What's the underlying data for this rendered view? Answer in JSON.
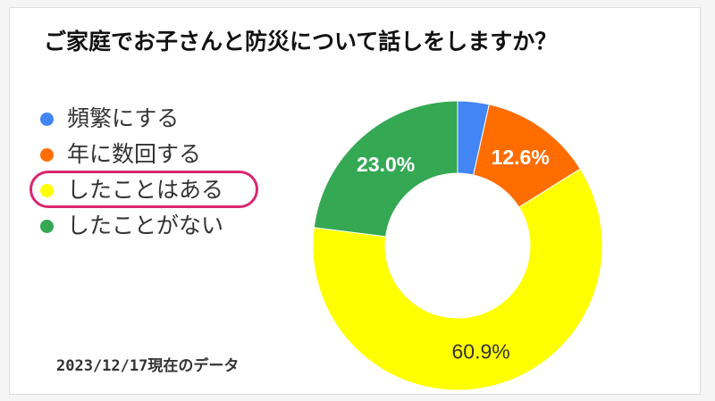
{
  "title": "ご家庭でお子さんと防災について話しをしますか？",
  "footnote": "2023/12/17現在のデータ",
  "chart_data": {
    "type": "pie",
    "title": "ご家庭でお子さんと防災について話しをしますか？",
    "categories": [
      "頻繁にする",
      "年に数回する",
      "したことはある",
      "したことがない"
    ],
    "values": [
      3.5,
      12.6,
      60.9,
      23.0
    ],
    "colors": [
      "#4285f4",
      "#ff6d01",
      "#ffff00",
      "#34a853"
    ],
    "data_labels": [
      "",
      "12.6%",
      "60.9%",
      "23.0%"
    ],
    "label_colors": [
      "#ffffff",
      "#ffffff",
      "#333333",
      "#ffffff"
    ],
    "legend_position": "left",
    "highlighted_category": "したことはある"
  }
}
